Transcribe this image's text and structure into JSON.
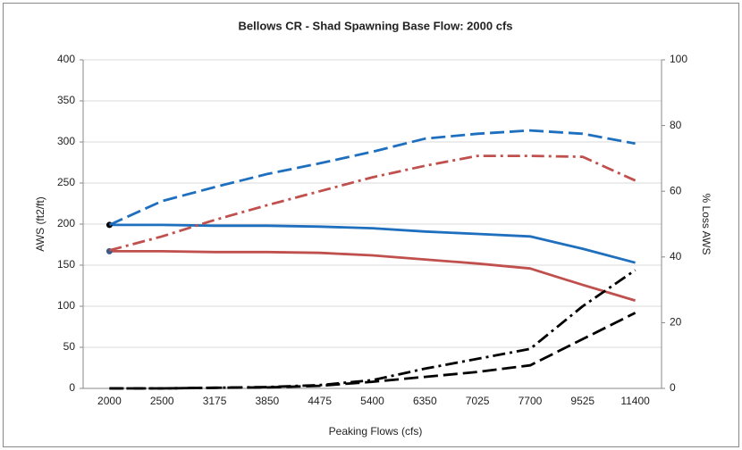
{
  "chart_data": {
    "type": "line",
    "title": "Bellows CR -  Shad Spawning   Base Flow: 2000 cfs",
    "x_label": "Peaking Flows (cfs)",
    "y_label": "AWS (ft2/ft)",
    "y2_label": "% Loss AWS",
    "categories": [
      "2000",
      "2500",
      "3175",
      "3850",
      "4475",
      "5400",
      "6350",
      "7025",
      "7700",
      "9525",
      "11400"
    ],
    "ylim": [
      0,
      400
    ],
    "yticks": [
      0,
      50,
      100,
      150,
      200,
      250,
      300,
      350,
      400
    ],
    "y2lim": [
      0,
      100
    ],
    "y2ticks": [
      0,
      20,
      40,
      60,
      80,
      100
    ],
    "grid": true,
    "series": [
      {
        "color": "#1f6fbf",
        "dash": "solid",
        "marker_color": "#000000",
        "values": [
          199,
          199,
          198,
          198,
          197,
          195,
          191,
          188,
          185,
          170,
          153
        ]
      },
      {
        "color": "#c0504d",
        "dash": "solid",
        "marker_color": "#3b5a8a",
        "values": [
          167,
          167,
          166,
          166,
          165,
          162,
          157,
          152,
          146,
          126,
          107
        ]
      },
      {
        "color": "#1f6fbf",
        "dash": "dashed",
        "values": [
          199,
          228,
          245,
          261,
          274,
          288,
          304,
          310,
          314,
          310,
          298
        ]
      },
      {
        "color": "#c0504d",
        "dash": "dashdot",
        "values": [
          168,
          185,
          205,
          223,
          240,
          257,
          271,
          283,
          283,
          282,
          253
        ]
      },
      {
        "color": "#000000",
        "dash": "dashdot",
        "axis": "y2",
        "values": [
          0,
          0,
          0.2,
          0.4,
          1,
          2.5,
          6,
          9,
          12,
          25,
          36
        ]
      },
      {
        "color": "#000000",
        "dash": "dashed",
        "axis": "y2",
        "values": [
          0,
          0,
          0.2,
          0.3,
          0.8,
          2,
          3.5,
          5,
          7,
          15,
          23
        ]
      }
    ]
  }
}
